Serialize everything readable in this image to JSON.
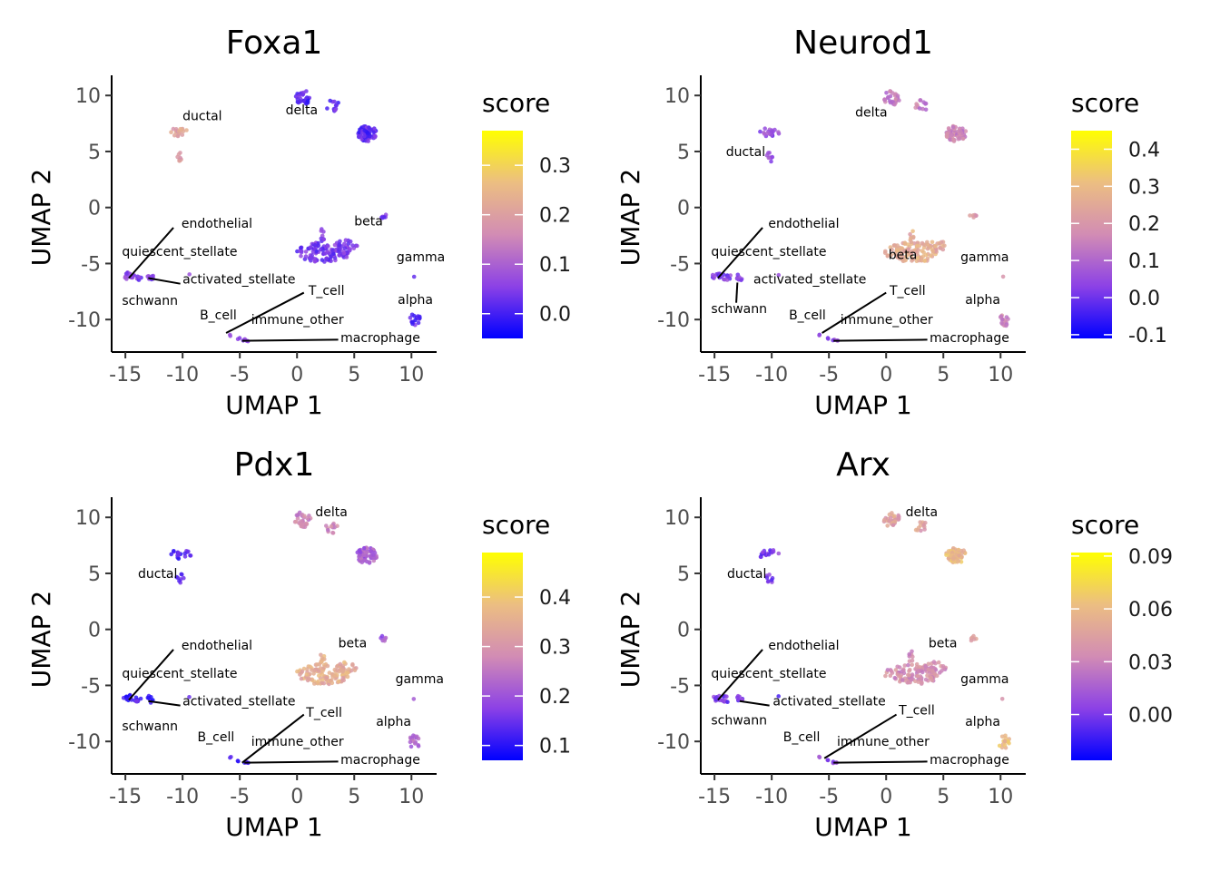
{
  "chart_data": [
    {
      "type": "scatter",
      "title": "Foxa1",
      "xlabel": "UMAP 1",
      "ylabel": "UMAP 2",
      "xlim": [
        -16.2,
        12.2
      ],
      "ylim": [
        -12.9,
        11.8
      ],
      "xticks": [
        -15,
        -10,
        -5,
        0,
        5,
        10
      ],
      "yticks": [
        10,
        5,
        0,
        -5,
        -10
      ],
      "xtick_labels": [
        "-15",
        "-10",
        "-5",
        "0",
        "5",
        "10"
      ],
      "ytick_labels": [
        "10",
        "5",
        "0",
        "-5",
        "-10"
      ],
      "legend_title": "score",
      "legend_placement": "right",
      "score_range": [
        -0.05,
        0.37
      ],
      "legend_ticks": [
        0.0,
        0.1,
        0.2,
        0.3
      ],
      "legend_tick_labels": [
        "0.0",
        "0.1",
        "0.2",
        "0.3"
      ],
      "clusters": [
        {
          "name": "delta",
          "score": 0.02
        },
        {
          "name": "ductal",
          "score": 0.2
        },
        {
          "name": "beta",
          "score": 0.04
        },
        {
          "name": "gamma",
          "score": 0.03
        },
        {
          "name": "alpha",
          "score": 0.02
        },
        {
          "name": "endothelial",
          "score": 0.05
        },
        {
          "name": "quiescent_stellate",
          "score": 0.05
        },
        {
          "name": "activated_stellate",
          "score": 0.05
        },
        {
          "name": "schwann",
          "score": 0.05
        },
        {
          "name": "T_cell",
          "score": 0.06
        },
        {
          "name": "B_cell",
          "score": 0.06
        },
        {
          "name": "immune_other",
          "score": 0.06
        },
        {
          "name": "macrophage",
          "score": 0.05
        }
      ],
      "labels": [
        {
          "text": "ductal",
          "x": -10.0,
          "y": 7.8
        },
        {
          "text": "delta",
          "x": -1.0,
          "y": 8.3
        },
        {
          "text": "beta",
          "x": 5.0,
          "y": -1.6
        },
        {
          "text": "endothelial",
          "x": -10.1,
          "y": -1.8
        },
        {
          "text": "quiescent_stellate",
          "x": -15.3,
          "y": -4.3
        },
        {
          "text": "gamma",
          "x": 8.7,
          "y": -4.8
        },
        {
          "text": "activated_stellate",
          "x": -10.0,
          "y": -6.8
        },
        {
          "text": "T_cell",
          "x": 1.0,
          "y": -7.8
        },
        {
          "text": "schwann",
          "x": -15.3,
          "y": -8.7
        },
        {
          "text": "alpha",
          "x": 8.8,
          "y": -8.6
        },
        {
          "text": "B_cell",
          "x": -8.5,
          "y": -10.0
        },
        {
          "text": "immune_other",
          "x": -4.0,
          "y": -10.4
        },
        {
          "text": "macrophage",
          "x": 3.8,
          "y": -12.0
        }
      ]
    },
    {
      "type": "scatter",
      "title": "Neurod1",
      "xlabel": "UMAP 1",
      "ylabel": "UMAP 2",
      "xlim": [
        -16.2,
        12.2
      ],
      "ylim": [
        -12.9,
        11.8
      ],
      "xticks": [
        -15,
        -10,
        -5,
        0,
        5,
        10
      ],
      "yticks": [
        10,
        5,
        0,
        -5,
        -10
      ],
      "xtick_labels": [
        "-15",
        "-10",
        "-5",
        "0",
        "5",
        "10"
      ],
      "ytick_labels": [
        "10",
        "5",
        "0",
        "-5",
        "-10"
      ],
      "legend_title": "score",
      "legend_placement": "right",
      "score_range": [
        -0.11,
        0.45
      ],
      "legend_ticks": [
        -0.1,
        0.0,
        0.1,
        0.2,
        0.3,
        0.4
      ],
      "legend_tick_labels": [
        "-0.1",
        "0.0",
        "0.1",
        "0.2",
        "0.3",
        "0.4"
      ],
      "clusters": [
        {
          "name": "delta",
          "score": 0.14
        },
        {
          "name": "ductal",
          "score": 0.05
        },
        {
          "name": "beta",
          "score": 0.26
        },
        {
          "name": "gamma",
          "score": 0.2
        },
        {
          "name": "alpha",
          "score": 0.16
        },
        {
          "name": "endothelial",
          "score": 0.02
        },
        {
          "name": "quiescent_stellate",
          "score": 0.02
        },
        {
          "name": "activated_stellate",
          "score": 0.04
        },
        {
          "name": "schwann",
          "score": 0.03
        },
        {
          "name": "T_cell",
          "score": 0.05
        },
        {
          "name": "B_cell",
          "score": 0.05
        },
        {
          "name": "immune_other",
          "score": 0.05
        },
        {
          "name": "macrophage",
          "score": 0.05
        }
      ],
      "labels": [
        {
          "text": "delta",
          "x": -2.7,
          "y": 8.1
        },
        {
          "text": "ductal",
          "x": -14.0,
          "y": 4.6
        },
        {
          "text": "endothelial",
          "x": -10.3,
          "y": -1.8
        },
        {
          "text": "quiescent_stellate",
          "x": -15.3,
          "y": -4.3
        },
        {
          "text": "beta",
          "x": 0.2,
          "y": -4.6
        },
        {
          "text": "gamma",
          "x": 6.5,
          "y": -4.8
        },
        {
          "text": "activated_stellate",
          "x": -11.6,
          "y": -6.8
        },
        {
          "text": "T_cell",
          "x": 0.3,
          "y": -7.8
        },
        {
          "text": "schwann",
          "x": -15.3,
          "y": -9.4
        },
        {
          "text": "alpha",
          "x": 6.9,
          "y": -8.6
        },
        {
          "text": "B_cell",
          "x": -8.5,
          "y": -10.0
        },
        {
          "text": "immune_other",
          "x": -4.0,
          "y": -10.4
        },
        {
          "text": "macrophage",
          "x": 3.8,
          "y": -12.0
        }
      ]
    },
    {
      "type": "scatter",
      "title": "Pdx1",
      "xlabel": "UMAP 1",
      "ylabel": "UMAP 2",
      "xlim": [
        -16.2,
        12.2
      ],
      "ylim": [
        -12.9,
        11.8
      ],
      "xticks": [
        -15,
        -10,
        -5,
        0,
        5,
        10
      ],
      "yticks": [
        10,
        5,
        0,
        -5,
        -10
      ],
      "xtick_labels": [
        "-15",
        "-10",
        "-5",
        "0",
        "5",
        "10"
      ],
      "ytick_labels": [
        "10",
        "5",
        "0",
        "-5",
        "-10"
      ],
      "legend_title": "score",
      "legend_placement": "right",
      "score_range": [
        0.07,
        0.49
      ],
      "legend_ticks": [
        0.1,
        0.2,
        0.3,
        0.4
      ],
      "legend_tick_labels": [
        "0.1",
        "0.2",
        "0.3",
        "0.4"
      ],
      "clusters": [
        {
          "name": "delta",
          "score": 0.27
        },
        {
          "name": "ductal",
          "score": 0.13
        },
        {
          "name": "beta",
          "score": 0.35
        },
        {
          "name": "gamma",
          "score": 0.2
        },
        {
          "name": "alpha",
          "score": 0.22
        },
        {
          "name": "endothelial",
          "score": 0.12
        },
        {
          "name": "quiescent_stellate",
          "score": 0.12
        },
        {
          "name": "activated_stellate",
          "score": 0.12
        },
        {
          "name": "schwann",
          "score": 0.12
        },
        {
          "name": "T_cell",
          "score": 0.13
        },
        {
          "name": "B_cell",
          "score": 0.13
        },
        {
          "name": "immune_other",
          "score": 0.13
        },
        {
          "name": "macrophage",
          "score": 0.13
        }
      ],
      "labels": [
        {
          "text": "delta",
          "x": 1.6,
          "y": 10.1
        },
        {
          "text": "ductal",
          "x": -13.9,
          "y": 4.6
        },
        {
          "text": "endothelial",
          "x": -10.1,
          "y": -1.8
        },
        {
          "text": "beta",
          "x": 3.6,
          "y": -1.6
        },
        {
          "text": "quiescent_stellate",
          "x": -15.3,
          "y": -4.3
        },
        {
          "text": "gamma",
          "x": 8.6,
          "y": -4.8
        },
        {
          "text": "activated_stellate",
          "x": -10.0,
          "y": -6.8
        },
        {
          "text": "T_cell",
          "x": 0.8,
          "y": -7.8
        },
        {
          "text": "schwann",
          "x": -15.3,
          "y": -9.0
        },
        {
          "text": "alpha",
          "x": 6.9,
          "y": -8.6
        },
        {
          "text": "B_cell",
          "x": -8.7,
          "y": -10.0
        },
        {
          "text": "immune_other",
          "x": -4.0,
          "y": -10.4
        },
        {
          "text": "macrophage",
          "x": 3.8,
          "y": -12.0
        }
      ]
    },
    {
      "type": "scatter",
      "title": "Arx",
      "xlabel": "UMAP 1",
      "ylabel": "UMAP 2",
      "xlim": [
        -16.2,
        12.2
      ],
      "ylim": [
        -12.9,
        11.8
      ],
      "xticks": [
        -15,
        -10,
        -5,
        0,
        5,
        10
      ],
      "yticks": [
        10,
        5,
        0,
        -5,
        -10
      ],
      "xtick_labels": [
        "-15",
        "-10",
        "-5",
        "0",
        "5",
        "10"
      ],
      "ytick_labels": [
        "10",
        "5",
        "0",
        "-5",
        "-10"
      ],
      "legend_title": "score",
      "legend_placement": "right",
      "score_range": [
        -0.026,
        0.092
      ],
      "legend_ticks": [
        0.0,
        0.03,
        0.06,
        0.09
      ],
      "legend_tick_labels": [
        "0.00",
        "0.03",
        "0.06",
        "0.09"
      ],
      "clusters": [
        {
          "name": "delta",
          "score": 0.045
        },
        {
          "name": "ductal",
          "score": 0.0
        },
        {
          "name": "beta",
          "score": 0.035
        },
        {
          "name": "gamma",
          "score": 0.04
        },
        {
          "name": "alpha",
          "score": 0.06
        },
        {
          "name": "endothelial",
          "score": 0.0
        },
        {
          "name": "quiescent_stellate",
          "score": 0.0
        },
        {
          "name": "activated_stellate",
          "score": 0.0
        },
        {
          "name": "schwann",
          "score": 0.0
        },
        {
          "name": "T_cell",
          "score": 0.005
        },
        {
          "name": "B_cell",
          "score": 0.005
        },
        {
          "name": "immune_other",
          "score": 0.005
        },
        {
          "name": "macrophage",
          "score": 0.005
        }
      ],
      "labels": [
        {
          "text": "delta",
          "x": 1.7,
          "y": 10.1
        },
        {
          "text": "ductal",
          "x": -13.9,
          "y": 4.6
        },
        {
          "text": "endothelial",
          "x": -10.3,
          "y": -1.8
        },
        {
          "text": "beta",
          "x": 3.7,
          "y": -1.6
        },
        {
          "text": "quiescent_stellate",
          "x": -15.3,
          "y": -4.3
        },
        {
          "text": "gamma",
          "x": 6.5,
          "y": -4.8
        },
        {
          "text": "activated_stellate",
          "x": -9.9,
          "y": -6.8
        },
        {
          "text": "T_cell",
          "x": 1.1,
          "y": -7.6
        },
        {
          "text": "schwann",
          "x": -15.3,
          "y": -8.5
        },
        {
          "text": "alpha",
          "x": 6.9,
          "y": -8.6
        },
        {
          "text": "B_cell",
          "x": -9.0,
          "y": -10.0
        },
        {
          "text": "immune_other",
          "x": -4.3,
          "y": -10.4
        },
        {
          "text": "macrophage",
          "x": 3.8,
          "y": -12.0
        }
      ]
    }
  ]
}
